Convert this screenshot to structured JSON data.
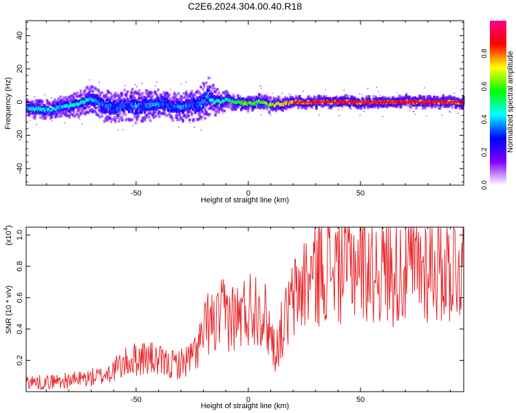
{
  "figure": {
    "title": "C2E6.2024.304.00.40.R18"
  },
  "chart_data": [
    {
      "type": "heatmap",
      "title": "C2E6.2024.304.00.40.R18",
      "xlabel": "Height of straight line (km)",
      "ylabel": "Frequency (Hz)",
      "xlim": [
        -99,
        96
      ],
      "ylim": [
        -50,
        49
      ],
      "xticks": [
        -50,
        0,
        50
      ],
      "xtick_labels": [
        "-50",
        "0",
        "50"
      ],
      "yticks": [
        -40,
        -20,
        0,
        20,
        40
      ],
      "ytick_labels": [
        "-40",
        "-20",
        "0",
        "20",
        "40"
      ],
      "grid": false,
      "colorbar": {
        "label": "Normalized spectral amplitude",
        "range": [
          0,
          1
        ],
        "ticks": [
          0.0,
          0.2,
          0.4,
          0.6,
          0.8
        ],
        "tick_labels": [
          "0.0",
          "0.2",
          "0.4",
          "0.6",
          "0.8"
        ],
        "colormap": [
          "#ffffff",
          "#8000ff",
          "#0000ff",
          "#00ffff",
          "#00ff00",
          "#ffff00",
          "#ff0000",
          "#ff0080"
        ]
      },
      "ridge": {
        "x": [
          -98,
          -93,
          -88,
          -83,
          -78,
          -73,
          -70,
          -66,
          -62,
          -58,
          -54,
          -50,
          -46,
          -42,
          -38,
          -34,
          -30,
          -26,
          -22,
          -18,
          -15,
          -10,
          -5,
          0,
          5,
          10,
          20,
          30,
          40,
          50,
          60,
          70,
          80,
          95
        ],
        "y": [
          -4,
          -4,
          -5,
          -3,
          -2,
          0,
          2,
          -1,
          -3,
          -3,
          -2,
          -2,
          -3,
          -2,
          -1,
          -2,
          -3,
          -2,
          -2,
          3,
          0,
          1,
          0,
          -1,
          0,
          -2,
          0,
          0,
          0,
          0,
          0,
          0,
          0,
          0
        ],
        "amplitude": [
          0.45,
          0.5,
          0.45,
          0.45,
          0.5,
          0.5,
          0.45,
          0.4,
          0.35,
          0.35,
          0.35,
          0.4,
          0.35,
          0.4,
          0.35,
          0.35,
          0.4,
          0.35,
          0.35,
          0.4,
          0.5,
          0.55,
          0.6,
          0.7,
          0.6,
          0.7,
          0.85,
          0.9,
          0.9,
          0.9,
          0.9,
          0.9,
          0.9,
          0.85
        ],
        "spread": [
          5,
          5,
          5,
          6,
          7,
          8,
          8,
          9,
          9,
          9,
          10,
          10,
          9,
          9,
          8,
          8,
          8,
          9,
          10,
          12,
          8,
          5,
          4,
          4,
          4,
          4,
          3,
          3,
          3,
          3,
          3,
          3,
          3,
          3
        ]
      }
    },
    {
      "type": "line",
      "xlabel": "Height of straight line (km)",
      "ylabel": "SNR (10 * v/v)",
      "y_multiplier_label": "(x10",
      "y_multiplier_exponent": "4",
      "y_multiplier_close": ")",
      "xlim": [
        -99,
        96
      ],
      "ylim": [
        0,
        1.05
      ],
      "xticks": [
        -50,
        0,
        50
      ],
      "xtick_labels": [
        "-50",
        "0",
        "50"
      ],
      "yticks": [
        0.2,
        0.4,
        0.6,
        0.8,
        1.0
      ],
      "ytick_labels": [
        "0.2",
        "0.4",
        "0.6",
        "0.8",
        "1.0"
      ],
      "grid": false,
      "series": [
        {
          "color": "#e8262a",
          "x": [
            -99,
            -95,
            -90,
            -85,
            -80,
            -75,
            -70,
            -65,
            -60,
            -55,
            -50,
            -45,
            -40,
            -35,
            -30,
            -25,
            -20,
            -18,
            -15,
            -12,
            -10,
            -5,
            0,
            5,
            10,
            12,
            15,
            20,
            25,
            30,
            35,
            40,
            45,
            50,
            55,
            60,
            65,
            70,
            75,
            80,
            85,
            90,
            96
          ],
          "y": [
            0.07,
            0.06,
            0.06,
            0.07,
            0.07,
            0.08,
            0.09,
            0.1,
            0.14,
            0.18,
            0.21,
            0.22,
            0.19,
            0.17,
            0.18,
            0.22,
            0.35,
            0.45,
            0.42,
            0.48,
            0.5,
            0.47,
            0.53,
            0.57,
            0.38,
            0.25,
            0.4,
            0.58,
            0.7,
            0.76,
            0.82,
            0.8,
            0.82,
            0.85,
            0.8,
            0.8,
            0.78,
            0.78,
            0.8,
            0.8,
            0.81,
            0.8,
            0.82
          ]
        }
      ]
    }
  ]
}
